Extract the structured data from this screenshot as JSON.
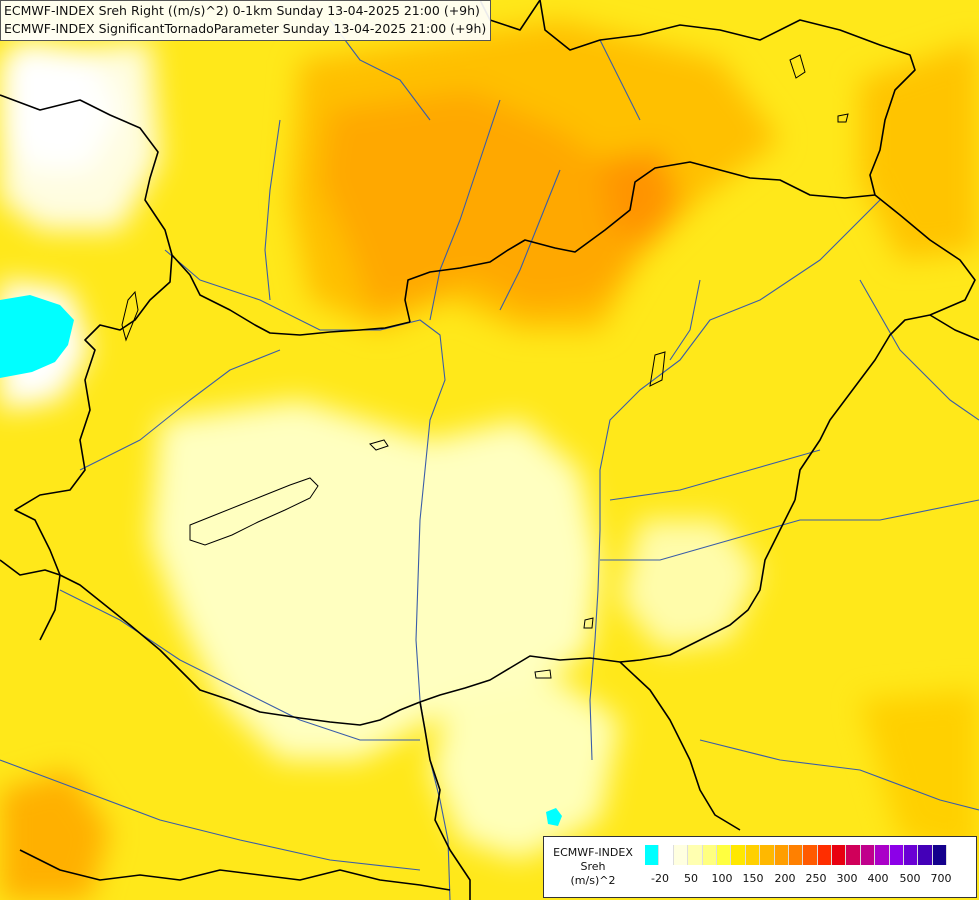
{
  "title": {
    "line1": "ECMWF-INDEX Sreh Right ((m/s)^2) 0-1km Sunday 13-04-2025 21:00 (+9h)",
    "line2": "ECMWF-INDEX SignificantTornadoParameter Sunday 13-04-2025 21:00 (+9h)"
  },
  "legend": {
    "title_line1": "ECMWF-INDEX",
    "title_line2": "Sreh",
    "units": "(m/s)^2",
    "colors": [
      "#00ffff",
      "#ffffff",
      "#ffffe0",
      "#ffffb0",
      "#ffff80",
      "#ffff40",
      "#ffe800",
      "#ffd000",
      "#ffb800",
      "#ff9e00",
      "#ff8000",
      "#ff5a00",
      "#ff2e00",
      "#e80010",
      "#d0005a",
      "#c0008c",
      "#aa00c8",
      "#8c00e8",
      "#6a00d4",
      "#4400b8",
      "#14008c"
    ],
    "tick_labels": [
      "-20",
      "50",
      "100",
      "150",
      "200",
      "250",
      "300",
      "400",
      "500",
      "700"
    ]
  },
  "colors": {
    "water": "#00ffff",
    "border": "#000000",
    "river": "#3a5da8",
    "field_low": "#fffdb8",
    "field_mid": "#ffec00",
    "field_high": "#ffb000"
  }
}
